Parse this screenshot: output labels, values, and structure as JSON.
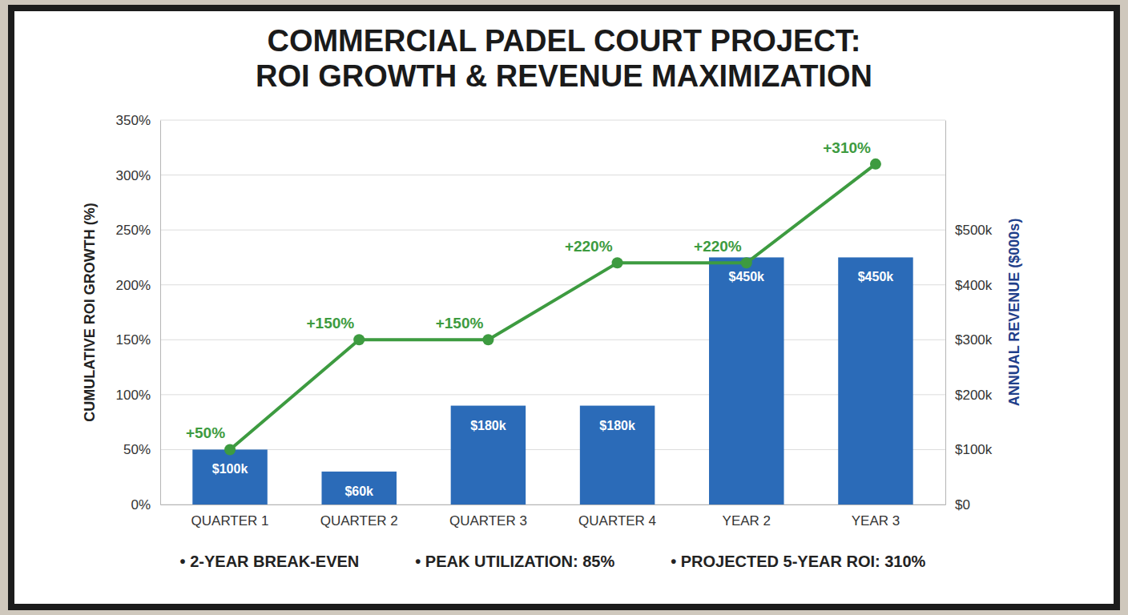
{
  "chart_data": {
    "type": "combo",
    "title": "COMMERCIAL PADEL COURT PROJECT: ROI GROWTH & REVENUE MAXIMIZATION",
    "categories": [
      "QUARTER 1",
      "QUARTER 2",
      "QUARTER 3",
      "QUARTER 4",
      "YEAR 2",
      "YEAR 3"
    ],
    "y_label": "CUMULATIVE ROI GROWTH (%)",
    "y2_label": "ANNUAL REVENUE ($000s)",
    "ylim": [
      0,
      350
    ],
    "yticks": [
      {
        "value": 0,
        "label": "0%"
      },
      {
        "value": 50,
        "label": "50%"
      },
      {
        "value": 100,
        "label": "100%"
      },
      {
        "value": 150,
        "label": "150%"
      },
      {
        "value": 200,
        "label": "200%"
      },
      {
        "value": 250,
        "label": "250%"
      },
      {
        "value": 300,
        "label": "300%"
      },
      {
        "value": 350,
        "label": "350%"
      }
    ],
    "y2lim": [
      0,
      700
    ],
    "y2ticks": [
      {
        "value": 0,
        "label": "$0"
      },
      {
        "value": 100,
        "label": "$100k"
      },
      {
        "value": 200,
        "label": "$200k"
      },
      {
        "value": 300,
        "label": "$300k"
      },
      {
        "value": 400,
        "label": "$400k"
      },
      {
        "value": 500,
        "label": "$500k"
      }
    ],
    "grid": true,
    "data_labels": true,
    "series": [
      {
        "type": "bar",
        "axis": "y2",
        "color": "#2b6bb8",
        "values": [
          100,
          60,
          180,
          180,
          450,
          450
        ],
        "value_labels": [
          "$100k",
          "$60k",
          "$180k",
          "$180k",
          "$450k",
          "$450k"
        ]
      },
      {
        "type": "line",
        "color": "#3d9b40",
        "marker": "circle",
        "values": [
          50,
          150,
          150,
          220,
          220,
          310
        ],
        "value_labels": [
          "+50%",
          "+150%",
          "+150%",
          "+220%",
          "+220%",
          "+310%"
        ]
      }
    ],
    "annotations": [
      "• 2-YEAR BREAK-EVEN",
      "• PEAK UTILIZATION: 85%",
      "• PROJECTED 5-YEAR ROI: 310%"
    ]
  }
}
